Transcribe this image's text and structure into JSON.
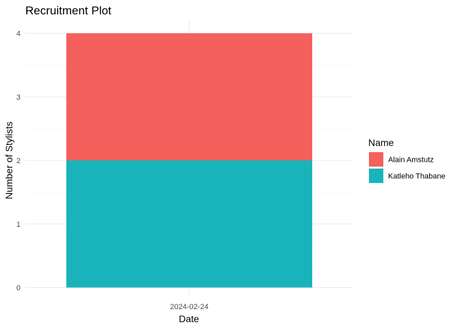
{
  "chart_data": {
    "type": "bar",
    "stacked": true,
    "title": "Recruitment Plot",
    "xlabel": "Date",
    "ylabel": "Number of Stylists",
    "categories": [
      "2024-02-24"
    ],
    "series": [
      {
        "name": "Katleho Thabane",
        "values": [
          2
        ],
        "color": "#19b4bb"
      },
      {
        "name": "Alain Amstutz",
        "values": [
          2
        ],
        "color": "#f4605c"
      }
    ],
    "ylim": [
      0,
      4
    ],
    "yticks": [
      0,
      1,
      2,
      3,
      4
    ],
    "grid": true,
    "legend": {
      "title": "Name",
      "placement": "right",
      "order": [
        "Alain Amstutz",
        "Katleho Thabane"
      ]
    }
  }
}
